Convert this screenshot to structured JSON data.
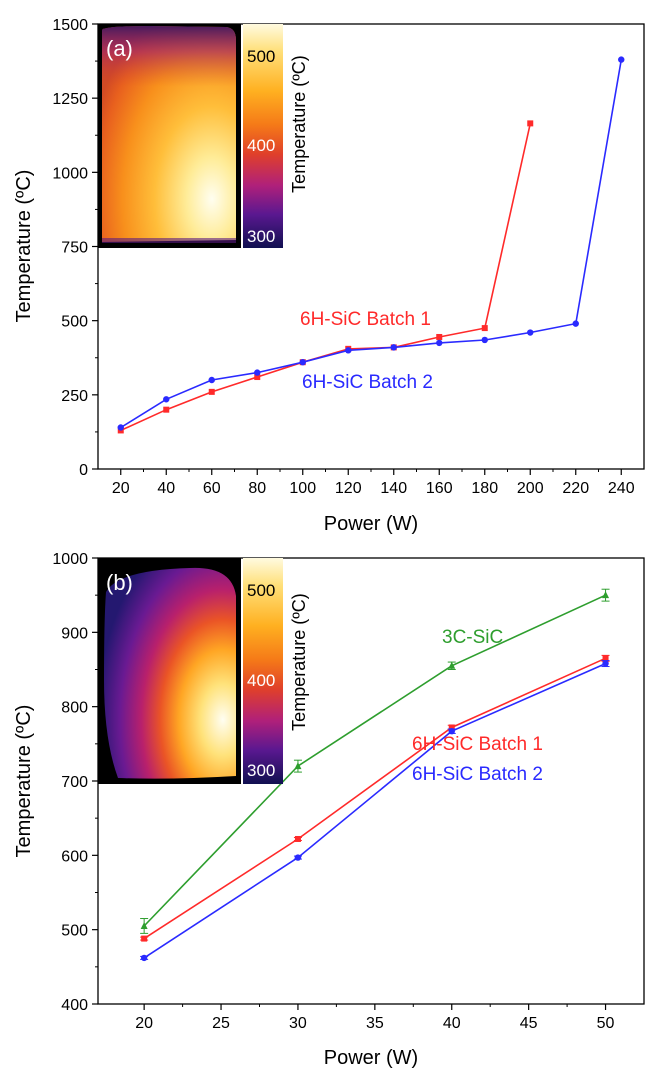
{
  "colors": {
    "axis": "#000000",
    "batch1": "#ff2a2a",
    "batch2": "#2a2aff",
    "sic3c": "#2e9e2e",
    "inset_bg": "#000000",
    "colorbar_label_dark": "#000000",
    "colorbar_label_light": "#ffffff"
  },
  "chart_data": [
    {
      "panel_label": "(a)",
      "type": "line",
      "xlabel": "Power (W)",
      "ylabel": "Temperature (ºC)",
      "xlim": [
        10,
        250
      ],
      "ylim": [
        0,
        1500
      ],
      "x_ticks": [
        20,
        40,
        60,
        80,
        100,
        120,
        140,
        160,
        180,
        200,
        220,
        240
      ],
      "y_ticks": [
        0,
        250,
        500,
        750,
        1000,
        1250,
        1500
      ],
      "series": [
        {
          "name": "6H-SiC Batch 1",
          "color": "#ff2a2a",
          "marker": "square",
          "x": [
            20,
            40,
            60,
            80,
            100,
            120,
            140,
            160,
            180,
            200
          ],
          "y": [
            130,
            200,
            260,
            310,
            360,
            405,
            410,
            445,
            475,
            1165
          ]
        },
        {
          "name": "6H-SiC Batch 2",
          "color": "#2a2aff",
          "marker": "circle",
          "x": [
            20,
            40,
            60,
            80,
            100,
            120,
            140,
            160,
            180,
            200,
            220,
            240
          ],
          "y": [
            140,
            235,
            300,
            325,
            360,
            400,
            410,
            425,
            435,
            460,
            490,
            1380
          ]
        }
      ],
      "inset": {
        "colorbar_label": "Temperature (ºC)",
        "colorbar_ticks": [
          "500",
          "400",
          "300"
        ]
      }
    },
    {
      "panel_label": "(b)",
      "type": "line",
      "xlabel": "Power (W)",
      "ylabel": "Temperature (ºC)",
      "xlim": [
        17,
        52.5
      ],
      "ylim": [
        400,
        1000
      ],
      "x_ticks": [
        20,
        25,
        30,
        35,
        40,
        45,
        50
      ],
      "y_ticks": [
        400,
        500,
        600,
        700,
        800,
        900,
        1000
      ],
      "series": [
        {
          "name": "3C-SiC",
          "color": "#2e9e2e",
          "marker": "triangle",
          "x": [
            20,
            30,
            40,
            50
          ],
          "y": [
            505,
            720,
            855,
            950
          ],
          "err": [
            10,
            8,
            5,
            8
          ]
        },
        {
          "name": "6H-SiC Batch 1",
          "color": "#ff2a2a",
          "marker": "square",
          "x": [
            20,
            30,
            40,
            50
          ],
          "y": [
            488,
            622,
            772,
            865
          ],
          "err": [
            2,
            2,
            3,
            4
          ]
        },
        {
          "name": "6H-SiC Batch 2",
          "color": "#2a2aff",
          "marker": "circle",
          "x": [
            20,
            30,
            40,
            50
          ],
          "y": [
            462,
            597,
            767,
            858
          ],
          "err": [
            2,
            2,
            3,
            4
          ]
        }
      ],
      "inset": {
        "colorbar_label": "Temperature (ºC)",
        "colorbar_ticks": [
          "500",
          "400",
          "300"
        ]
      }
    }
  ]
}
